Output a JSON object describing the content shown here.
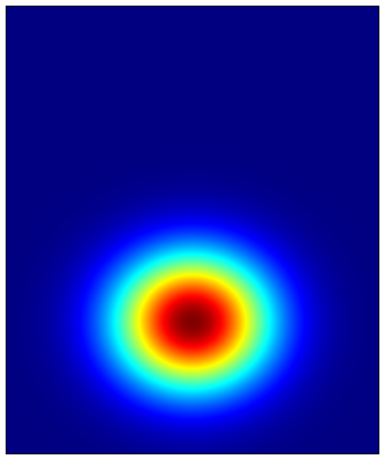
{
  "chart_data": {
    "type": "heatmap",
    "title": "",
    "xlabel": "",
    "ylabel": "",
    "colormap": "jet",
    "grid": false,
    "legend": "none",
    "xlim": [
      0,
      1
    ],
    "ylim": [
      0,
      1
    ],
    "value_range": [
      0,
      1
    ],
    "background_value": 0,
    "peak": {
      "value": 1.0,
      "x": 0.5,
      "y": 0.295
    },
    "spread": {
      "sigma_x": 0.148,
      "sigma_y": 0.108
    }
  }
}
